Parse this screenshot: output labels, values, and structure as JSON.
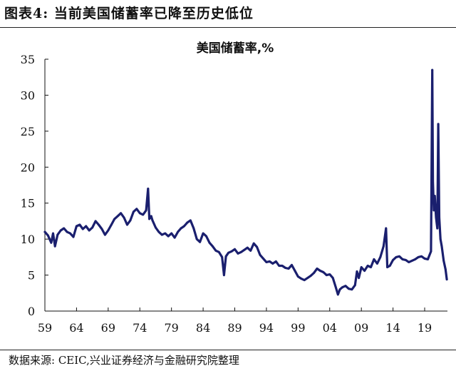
{
  "figure_title": "图表4:  当前美国储蓄率已降至历史低位",
  "source_note": "数据来源:  CEIC,兴业证券经济与金融研究院整理",
  "chart_data": {
    "type": "line",
    "title": "美国储蓄率,%",
    "xlabel": "",
    "ylabel": "",
    "ylim": [
      0,
      35
    ],
    "xlim": [
      1959,
      2022.6
    ],
    "y_ticks": [
      0,
      5,
      10,
      15,
      20,
      25,
      30,
      35
    ],
    "x_ticks": [
      {
        "value": 1959,
        "label": "59"
      },
      {
        "value": 1964,
        "label": "64"
      },
      {
        "value": 1969,
        "label": "69"
      },
      {
        "value": 1974,
        "label": "74"
      },
      {
        "value": 1979,
        "label": "79"
      },
      {
        "value": 1984,
        "label": "84"
      },
      {
        "value": 1989,
        "label": "89"
      },
      {
        "value": 1994,
        "label": "94"
      },
      {
        "value": 1999,
        "label": "99"
      },
      {
        "value": 2004,
        "label": "04"
      },
      {
        "value": 2009,
        "label": "09"
      },
      {
        "value": 2014,
        "label": "14"
      },
      {
        "value": 2019,
        "label": "19"
      }
    ],
    "grid": false,
    "legend": "none",
    "line_color": "#1a1f6e",
    "series": [
      {
        "x": [
          1959.0,
          1959.5,
          1960.0,
          1960.3,
          1960.6,
          1961.0,
          1961.5,
          1962.0,
          1962.5,
          1963.0,
          1963.5,
          1964.0,
          1964.5,
          1965.0,
          1965.5,
          1966.0,
          1966.5,
          1967.0,
          1967.5,
          1968.0,
          1968.5,
          1969.0,
          1969.5,
          1970.0,
          1970.5,
          1971.0,
          1971.5,
          1972.0,
          1972.5,
          1973.0,
          1973.5,
          1974.0,
          1974.5,
          1975.0,
          1975.3,
          1975.5,
          1975.8,
          1976.0,
          1976.5,
          1977.0,
          1977.5,
          1978.0,
          1978.5,
          1979.0,
          1979.5,
          1980.0,
          1980.5,
          1981.0,
          1981.5,
          1982.0,
          1982.5,
          1983.0,
          1983.5,
          1984.0,
          1984.5,
          1985.0,
          1985.5,
          1986.0,
          1986.5,
          1987.0,
          1987.3,
          1987.6,
          1988.0,
          1988.5,
          1989.0,
          1989.5,
          1990.0,
          1990.5,
          1991.0,
          1991.5,
          1992.0,
          1992.5,
          1993.0,
          1993.5,
          1994.0,
          1994.5,
          1995.0,
          1995.5,
          1996.0,
          1996.5,
          1997.0,
          1997.5,
          1998.0,
          1998.5,
          1999.0,
          1999.5,
          2000.0,
          2000.5,
          2001.0,
          2001.5,
          2002.0,
          2002.5,
          2003.0,
          2003.5,
          2004.0,
          2004.5,
          2005.0,
          2005.3,
          2005.6,
          2006.0,
          2006.5,
          2007.0,
          2007.5,
          2008.0,
          2008.3,
          2008.6,
          2009.0,
          2009.5,
          2010.0,
          2010.5,
          2011.0,
          2011.5,
          2012.0,
          2012.5,
          2012.9,
          2013.1,
          2013.5,
          2014.0,
          2014.5,
          2015.0,
          2015.5,
          2016.0,
          2016.5,
          2017.0,
          2017.5,
          2018.0,
          2018.5,
          2019.0,
          2019.5,
          2020.0,
          2020.2,
          2020.3,
          2020.45,
          2020.6,
          2020.8,
          2021.0,
          2021.15,
          2021.3,
          2021.5,
          2021.7,
          2022.0,
          2022.3,
          2022.5
        ],
        "y": [
          11.0,
          10.5,
          9.5,
          10.8,
          9.0,
          10.6,
          11.2,
          11.5,
          11.0,
          10.8,
          10.3,
          11.8,
          12.0,
          11.4,
          11.8,
          11.2,
          11.6,
          12.5,
          12.0,
          11.4,
          10.6,
          11.2,
          12.0,
          12.8,
          13.2,
          13.6,
          13.0,
          12.0,
          12.6,
          13.8,
          14.2,
          13.6,
          13.4,
          14.0,
          17.0,
          12.8,
          13.2,
          12.6,
          11.6,
          11.0,
          10.6,
          10.8,
          10.4,
          10.8,
          10.2,
          11.0,
          11.5,
          11.8,
          12.3,
          12.6,
          11.5,
          10.0,
          9.6,
          10.8,
          10.4,
          9.5,
          9.0,
          8.4,
          8.2,
          7.5,
          5.0,
          7.6,
          8.1,
          8.3,
          8.6,
          8.0,
          8.2,
          8.5,
          8.8,
          8.4,
          9.4,
          8.9,
          7.8,
          7.3,
          6.8,
          6.9,
          6.6,
          6.9,
          6.3,
          6.3,
          6.0,
          5.9,
          6.4,
          5.6,
          4.8,
          4.5,
          4.3,
          4.6,
          4.9,
          5.3,
          5.9,
          5.6,
          5.4,
          5.0,
          5.1,
          4.6,
          3.2,
          2.3,
          3.0,
          3.3,
          3.5,
          3.1,
          3.0,
          3.6,
          5.5,
          4.6,
          6.1,
          5.6,
          6.3,
          6.1,
          7.2,
          6.6,
          7.5,
          9.0,
          11.5,
          6.1,
          6.3,
          7.1,
          7.5,
          7.6,
          7.2,
          7.1,
          6.8,
          7.0,
          7.2,
          7.5,
          7.6,
          7.3,
          7.2,
          8.3,
          33.5,
          18.0,
          14.0,
          16.0,
          13.0,
          11.5,
          26.0,
          13.0,
          10.0,
          9.0,
          7.0,
          5.8,
          4.4
        ]
      }
    ]
  }
}
